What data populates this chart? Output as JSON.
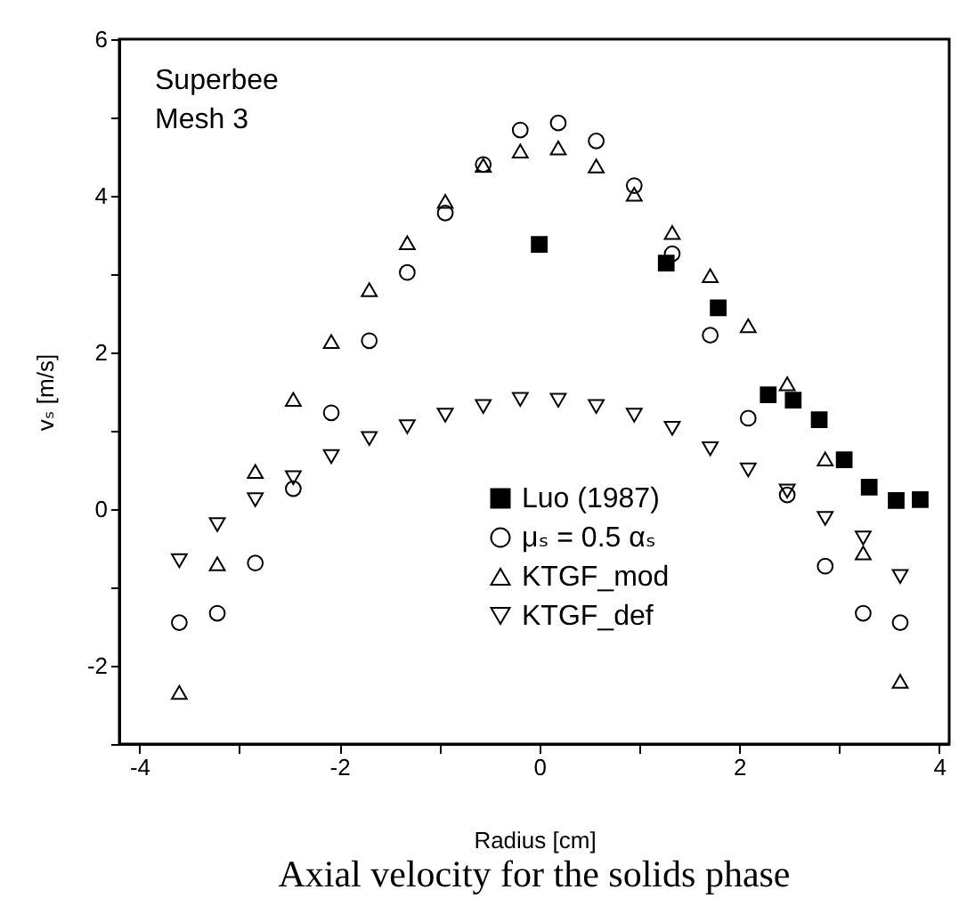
{
  "chart_data": {
    "type": "scatter",
    "title": "Axial velocity for the solids phase",
    "xlabel": "Radius [cm]",
    "ylabel": "vₛ [m/s]",
    "annotations": [
      "Superbee",
      "Mesh 3"
    ],
    "xlim": [
      -4.2,
      4.1
    ],
    "xticks": [
      -4,
      {
        "value": -3,
        "label": null
      },
      -2,
      {
        "value": -1,
        "label": null
      },
      0,
      {
        "value": 1,
        "label": null
      },
      2,
      {
        "value": 3,
        "label": null
      },
      4
    ],
    "ylim": [
      -3,
      6
    ],
    "yticks": [
      {
        "value": -3,
        "label": null
      },
      -2,
      {
        "value": -1,
        "label": null
      },
      0,
      {
        "value": 1,
        "label": null
      },
      2,
      {
        "value": 3,
        "label": null
      },
      4,
      {
        "value": 5,
        "label": null
      },
      6
    ],
    "grid": false,
    "legend": "bottom",
    "series": [
      {
        "name": "Luo (1987)",
        "color": "#000000",
        "marker": "square",
        "x": [
          0,
          1.27,
          1.79,
          2.29,
          2.54,
          2.8,
          3.05,
          3.3,
          3.57,
          3.81
        ],
        "values": [
          3.38,
          3.14,
          2.57,
          1.46,
          1.39,
          1.14,
          0.63,
          0.28,
          0.11,
          0.12
        ]
      },
      {
        "name": "μₛ = 0.5 αₛ",
        "color": "#000000",
        "marker": "circle",
        "x": [
          -3.6,
          -3.22,
          -2.84,
          -2.46,
          -2.08,
          -1.7,
          -1.32,
          -0.94,
          -0.56,
          -0.19,
          0.19,
          0.57,
          0.95,
          1.33,
          1.71,
          2.09,
          2.48,
          2.86,
          3.24,
          3.61
        ],
        "values": [
          -1.45,
          -1.33,
          -0.69,
          0.26,
          1.23,
          2.15,
          3.02,
          3.78,
          4.4,
          4.84,
          4.93,
          4.7,
          4.13,
          3.26,
          2.22,
          1.16,
          0.18,
          -0.73,
          -1.33,
          -1.45
        ]
      },
      {
        "name": "KTGF_mod",
        "color": "#000000",
        "marker": "triangle",
        "x": [
          -3.6,
          -3.22,
          -2.84,
          -2.46,
          -2.08,
          -1.7,
          -1.32,
          -0.94,
          -0.56,
          -0.19,
          0.19,
          0.57,
          0.95,
          1.33,
          1.71,
          2.09,
          2.48,
          2.86,
          3.24,
          3.61
        ],
        "values": [
          -2.34,
          -0.7,
          0.48,
          1.4,
          2.14,
          2.8,
          3.4,
          3.93,
          4.39,
          4.57,
          4.61,
          4.38,
          4.02,
          3.53,
          2.98,
          2.34,
          1.6,
          0.64,
          -0.56,
          -2.2
        ]
      },
      {
        "name": "KTGF_def",
        "color": "#000000",
        "marker": "triangle-down",
        "x": [
          -3.6,
          -3.22,
          -2.84,
          -2.46,
          -2.08,
          -1.7,
          -1.32,
          -0.94,
          -0.56,
          -0.19,
          0.19,
          0.57,
          0.95,
          1.33,
          1.71,
          2.09,
          2.48,
          2.86,
          3.24,
          3.61
        ],
        "values": [
          -0.66,
          -0.2,
          0.12,
          0.4,
          0.67,
          0.9,
          1.05,
          1.2,
          1.31,
          1.4,
          1.39,
          1.31,
          1.2,
          1.03,
          0.77,
          0.5,
          0.23,
          -0.12,
          -0.37,
          -0.86
        ]
      }
    ]
  }
}
